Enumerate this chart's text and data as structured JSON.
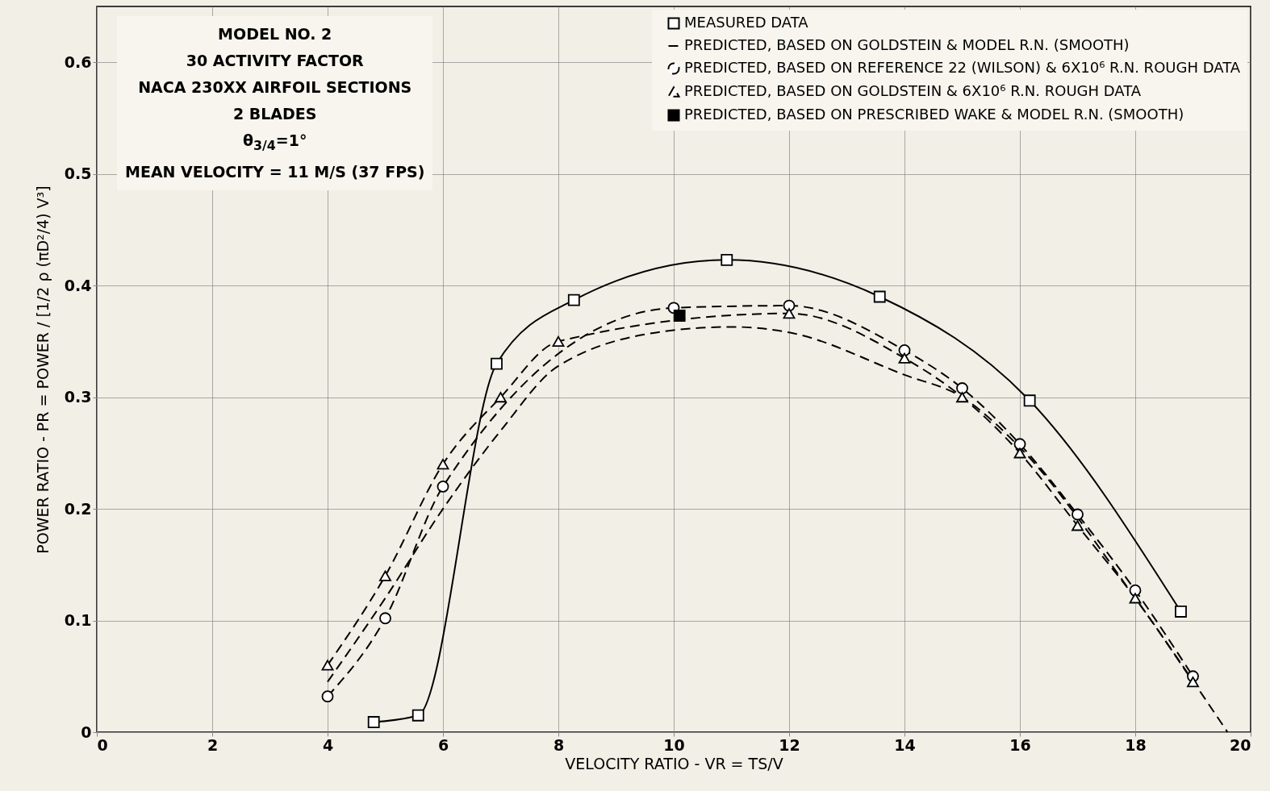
{
  "chart_data": {
    "type": "line",
    "xlabel": "VELOCITY RATIO - VR = TS/V",
    "ylabel": "POWER RATIO - PR = POWER / [1/2 ρ (πD²/4) V³]",
    "annotations": [
      "MODEL NO. 2",
      "30 ACTIVITY FACTOR",
      "NACA 230XX AIRFOIL SECTIONS",
      "2 BLADES",
      "θ$_{3/4}$=1°",
      "MEAN VELOCITY = 11 M/S (37 FPS)"
    ],
    "xlim": [
      0,
      20
    ],
    "ylim": [
      0,
      0.65
    ],
    "xticks": [
      0,
      2,
      4,
      6,
      8,
      10,
      12,
      14,
      16,
      18,
      20
    ],
    "yticks": [
      0,
      0.1,
      0.2,
      0.3,
      0.4,
      0.5,
      0.6
    ],
    "grid": true,
    "legend": "top right",
    "series": [
      {
        "name": "MEASURED DATA",
        "color": "#000000",
        "marker": "square",
        "line_style": "solid",
        "x": [
          4.8,
          5.57,
          6.93,
          8.27,
          10.92,
          13.57,
          16.17,
          18.79
        ],
        "values": [
          0.009,
          0.015,
          0.33,
          0.387,
          0.423,
          0.39,
          0.297,
          0.108
        ]
      },
      {
        "name": "PREDICTED, BASED ON GOLDSTEIN & MODEL R.N. (SMOOTH)",
        "color": "#000000",
        "marker": "none",
        "line_style": "dashed",
        "x": [
          4,
          5,
          6,
          7,
          8,
          10,
          11,
          12,
          14,
          15,
          16,
          18,
          19.6
        ],
        "values": [
          0.045,
          0.12,
          0.2,
          0.27,
          0.328,
          0.36,
          0.363,
          0.358,
          0.32,
          0.3,
          0.255,
          0.12,
          0
        ]
      },
      {
        "name": "PREDICTED, BASED ON REFERENCE 22 (WILSON) & 6X10⁶ R.N. ROUGH DATA",
        "color": "#000000",
        "marker": "circle",
        "line_style": "dashed",
        "x": [
          4,
          5,
          6,
          8,
          10,
          12,
          14,
          15,
          16,
          17,
          18,
          19
        ],
        "values": [
          0.032,
          0.102,
          0.22,
          null,
          0.38,
          0.382,
          0.342,
          0.308,
          0.258,
          0.195,
          0.127,
          0.05
        ]
      },
      {
        "name": "PREDICTED, BASED ON GOLDSTEIN & 6X10⁶ R.N. ROUGH DATA",
        "color": "#000000",
        "marker": "triangle",
        "line_style": "dashed",
        "x": [
          4,
          5,
          6,
          7,
          8,
          12,
          14,
          15,
          16,
          17,
          18,
          19
        ],
        "values": [
          0.06,
          0.14,
          0.24,
          0.3,
          0.35,
          0.375,
          0.335,
          0.3,
          0.25,
          0.185,
          0.12,
          0.045
        ]
      },
      {
        "name": "PREDICTED, BASED ON PRESCRIBED WAKE & MODEL R.N. (SMOOTH)",
        "type": "scatter",
        "color": "#000000",
        "marker": "square",
        "x": [
          10.1
        ],
        "values": [
          0.373
        ]
      }
    ]
  }
}
